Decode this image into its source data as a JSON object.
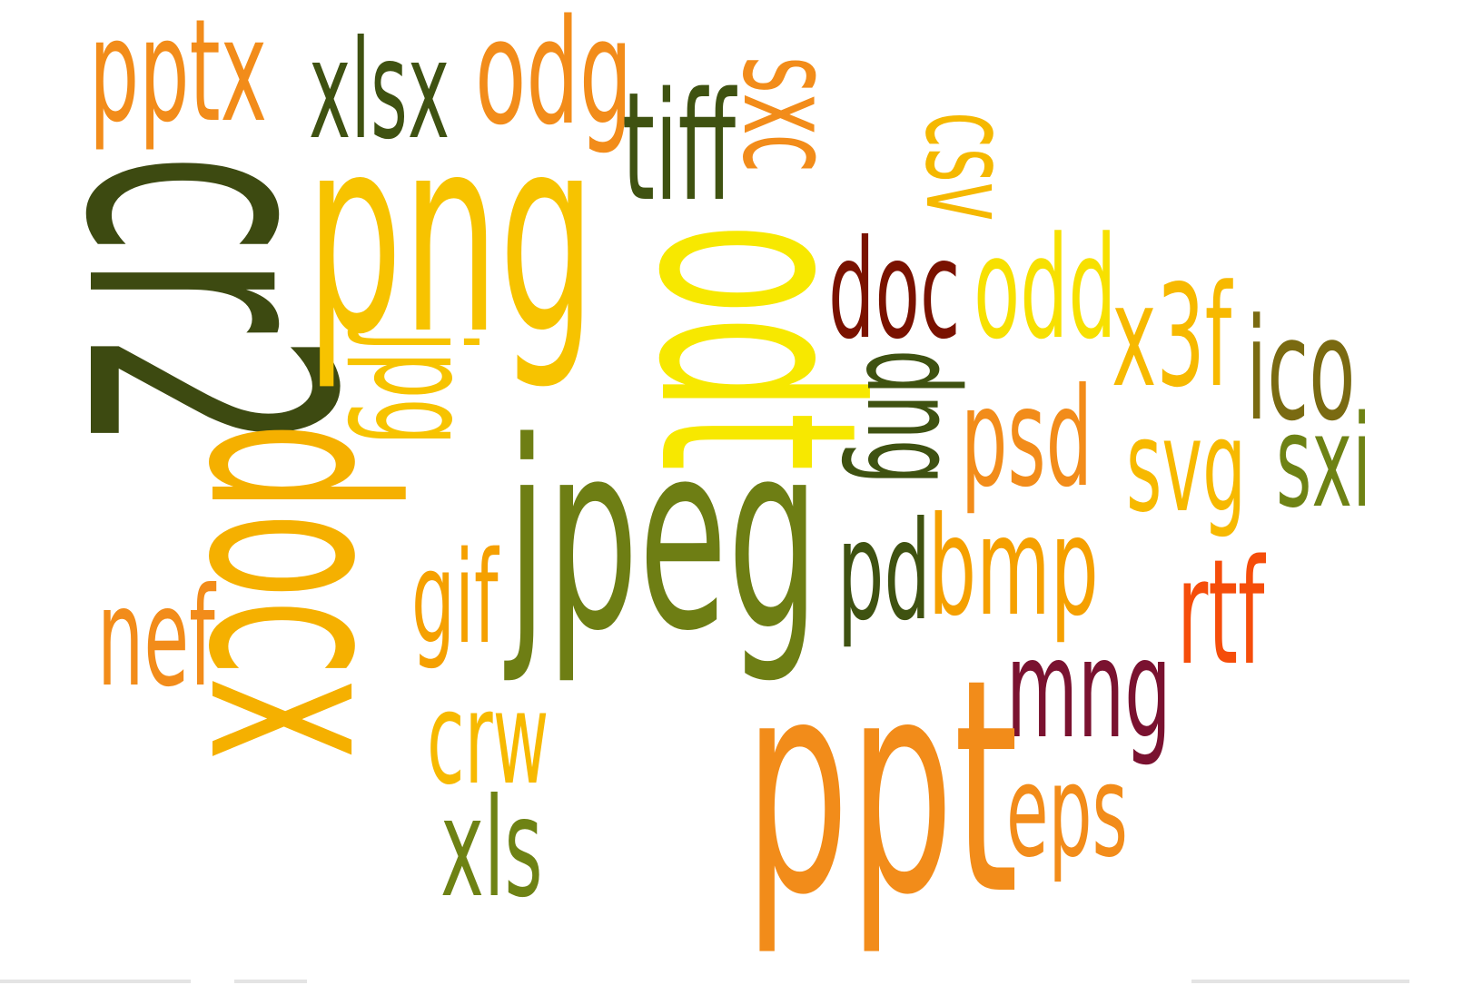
{
  "words": [
    {
      "text": "pptx",
      "color": "#F28C1A",
      "rotate": 0
    },
    {
      "text": "xlsx",
      "color": "#3F5211",
      "rotate": 0
    },
    {
      "text": "odg",
      "color": "#F28C1A",
      "rotate": 0
    },
    {
      "text": "tiff",
      "color": "#3F5211",
      "rotate": 0
    },
    {
      "text": "sxc",
      "color": "#F28C1A",
      "rotate": 90
    },
    {
      "text": "csv",
      "color": "#F5B800",
      "rotate": 90
    },
    {
      "text": "cr2",
      "color": "#3D4A11",
      "rotate": 90
    },
    {
      "text": "png",
      "color": "#F7C300",
      "rotate": 0
    },
    {
      "text": "odt",
      "color": "#F7E800",
      "rotate": 90
    },
    {
      "text": "doc",
      "color": "#7A1200",
      "rotate": 0
    },
    {
      "text": "odd",
      "color": "#F7E000",
      "rotate": 0
    },
    {
      "text": "x3f",
      "color": "#F7B900",
      "rotate": 0
    },
    {
      "text": "ico",
      "color": "#7A6A11",
      "rotate": 0
    },
    {
      "text": "jpg",
      "color": "#F7C300",
      "rotate": 90
    },
    {
      "text": "dng",
      "color": "#3F5211",
      "rotate": 90
    },
    {
      "text": "psd",
      "color": "#F28C1A",
      "rotate": 0
    },
    {
      "text": "svg",
      "color": "#F7B900",
      "rotate": 0
    },
    {
      "text": "sxi",
      "color": "#6E8214",
      "rotate": 0
    },
    {
      "text": "docx",
      "color": "#F5B000",
      "rotate": 90
    },
    {
      "text": "jpeg",
      "color": "#6E7E14",
      "rotate": 0
    },
    {
      "text": "pd",
      "color": "#3F5211",
      "rotate": 0
    },
    {
      "text": "bmp",
      "color": "#F5A000",
      "rotate": 0
    },
    {
      "text": "rtf",
      "color": "#F54D0A",
      "rotate": 0
    },
    {
      "text": "nef",
      "color": "#F28C1A",
      "rotate": 0
    },
    {
      "text": "gif",
      "color": "#F5A000",
      "rotate": 0
    },
    {
      "text": "mng",
      "color": "#7A1230",
      "rotate": 0
    },
    {
      "text": "crw",
      "color": "#F7B900",
      "rotate": 0
    },
    {
      "text": "ppt",
      "color": "#F28C1A",
      "rotate": 0
    },
    {
      "text": "eps",
      "color": "#F28C1A",
      "rotate": 0
    },
    {
      "text": "xls",
      "color": "#6E8214",
      "rotate": 0
    }
  ]
}
